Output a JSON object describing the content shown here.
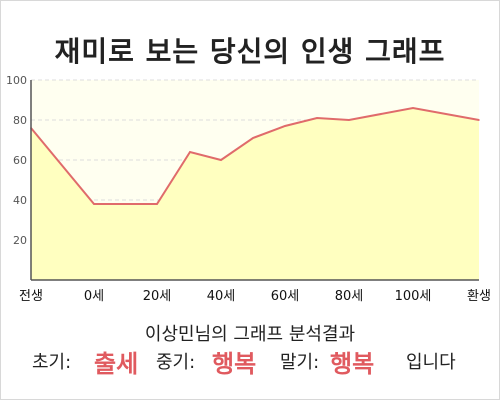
{
  "title": "재미로 보는 당신의 인생 그래프",
  "chart_data": {
    "type": "area",
    "x_tick_labels": [
      "전생",
      "0세",
      "20세",
      "40세",
      "60세",
      "80세",
      "100세",
      "환생"
    ],
    "x": [
      "전생",
      "0세",
      "20세",
      "30세",
      "40세",
      "50세",
      "60세",
      "70세",
      "80세",
      "100세",
      "환생"
    ],
    "y": [
      76,
      38,
      38,
      64,
      60,
      71,
      77,
      81,
      80,
      86,
      80
    ],
    "ylim": [
      0,
      100
    ],
    "y_ticks": [
      20,
      40,
      60,
      80,
      100
    ],
    "grid": true,
    "colors": {
      "line": "#e06b6b",
      "fill": "#ffffc0",
      "background": "#fffff0",
      "grid": "#dddddd"
    }
  },
  "subtitle": "이상민님의 그래프 분석결과",
  "result": {
    "early_label": "초기:",
    "early_value": "출세",
    "mid_label": "중기:",
    "mid_value": "행복",
    "late_label": "말기:",
    "late_value": "행복",
    "suffix": "입니다",
    "accent_color": "#e05a5f"
  }
}
